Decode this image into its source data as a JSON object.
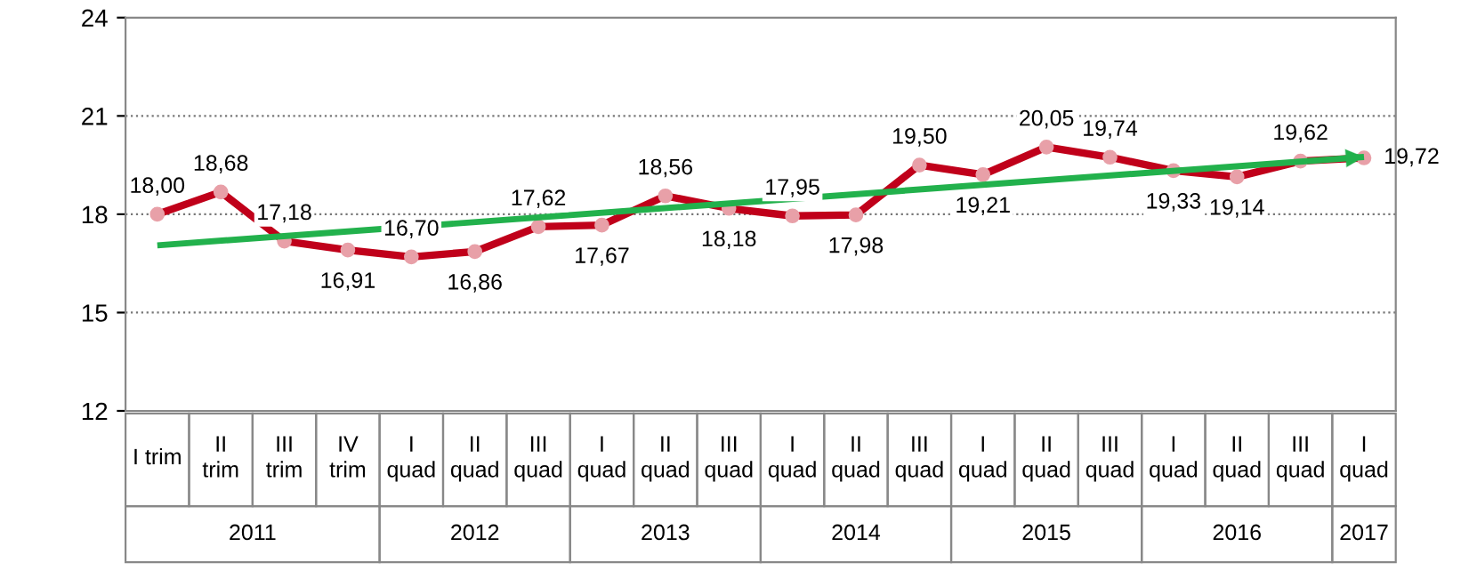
{
  "chart_data": {
    "type": "line",
    "categories": [
      "I trim",
      "II trim",
      "III trim",
      "IV trim",
      "I quad",
      "II quad",
      "III quad",
      "I quad",
      "II quad",
      "III quad",
      "I quad",
      "II quad",
      "III quad",
      "I quad",
      "II quad",
      "III quad",
      "I quad",
      "II quad",
      "III quad",
      "I quad"
    ],
    "series": [
      {
        "color": "#c0001a",
        "marker": "circle",
        "values": [
          18.0,
          18.68,
          17.18,
          16.91,
          16.7,
          16.86,
          17.62,
          17.67,
          18.56,
          18.18,
          17.95,
          17.98,
          19.5,
          19.21,
          20.05,
          19.74,
          19.33,
          19.14,
          19.62,
          19.72
        ],
        "value_labels": [
          "18,00",
          "18,68",
          "17,18",
          "16,91",
          "16,70",
          "16,86",
          "17,62",
          "17,67",
          "18,56",
          "18,18",
          "17,95",
          "17,98",
          "19,50",
          "19,21",
          "20,05",
          "19,74",
          "19,33",
          "19,14",
          "19,62",
          "19,72"
        ]
      },
      {
        "color": "#22b14c",
        "values": [
          17.05,
          null,
          null,
          null,
          null,
          null,
          null,
          null,
          null,
          null,
          null,
          null,
          null,
          null,
          null,
          null,
          null,
          null,
          null,
          19.75
        ]
      }
    ],
    "ylim": [
      12,
      24
    ],
    "yticks": [
      12,
      15,
      18,
      21,
      24
    ],
    "grid": "y",
    "legend": false,
    "annotations": [
      "2011",
      "2012",
      "2013",
      "2014",
      "2015",
      "2016",
      "2017"
    ]
  }
}
